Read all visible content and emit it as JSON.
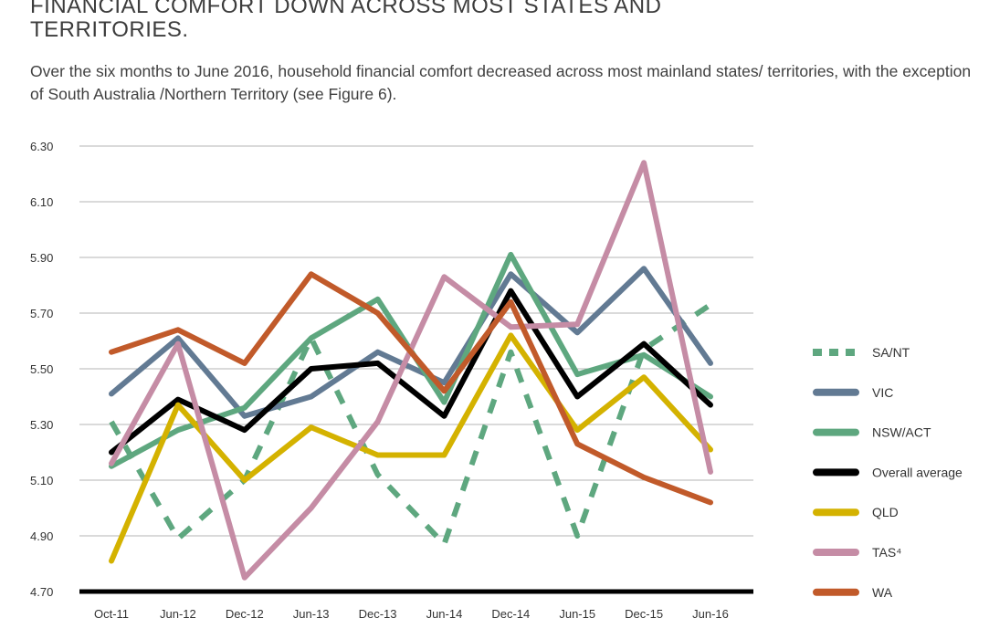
{
  "header": {
    "title": "FINANCIAL COMFORT DOWN ACROSS MOST STATES AND TERRITORIES.",
    "subtitle": "Over the six months to June 2016, household financial comfort decreased across most mainland states/ territories, with the exception of South Australia /Northern Territory (see Figure 6)."
  },
  "chart_data": {
    "type": "line",
    "categories": [
      "Oct-11",
      "Jun-12",
      "Dec-12",
      "Jun-13",
      "Dec-13",
      "Jun-14",
      "Dec-14",
      "Jun-15",
      "Dec-15",
      "Jun-16"
    ],
    "ylim": [
      4.7,
      6.3
    ],
    "yticks": [
      "6.30",
      "6.10",
      "5.90",
      "5.70",
      "5.50",
      "5.30",
      "5.10",
      "4.90",
      "4.70"
    ],
    "ytick_values": [
      6.3,
      6.1,
      5.9,
      5.7,
      5.5,
      5.3,
      5.1,
      4.9,
      4.7
    ],
    "grid": true,
    "legend_position": "right",
    "series": [
      {
        "name": "SA/NT",
        "color": "#5ea77f",
        "dashed": true,
        "values": [
          5.31,
          4.89,
          5.1,
          5.61,
          5.12,
          4.87,
          5.56,
          4.9,
          5.57,
          5.73
        ]
      },
      {
        "name": "VIC",
        "color": "#627a93",
        "dashed": false,
        "values": [
          5.41,
          5.61,
          5.33,
          5.4,
          5.56,
          5.45,
          5.84,
          5.63,
          5.86,
          5.52
        ]
      },
      {
        "name": "NSW/ACT",
        "color": "#5ea77f",
        "dashed": false,
        "values": [
          5.15,
          5.28,
          5.36,
          5.61,
          5.75,
          5.38,
          5.91,
          5.48,
          5.55,
          5.4
        ]
      },
      {
        "name": "Overall average",
        "color": "#000000",
        "dashed": false,
        "values": [
          5.2,
          5.39,
          5.28,
          5.5,
          5.52,
          5.33,
          5.78,
          5.4,
          5.59,
          5.37
        ]
      },
      {
        "name": "QLD",
        "color": "#d4b200",
        "dashed": false,
        "values": [
          4.81,
          5.37,
          5.1,
          5.29,
          5.19,
          5.19,
          5.62,
          5.28,
          5.47,
          5.21
        ]
      },
      {
        "name": "TAS⁴",
        "color": "#c58ca5",
        "dashed": false,
        "values": [
          5.16,
          5.59,
          4.75,
          5.0,
          5.31,
          5.83,
          5.65,
          5.66,
          6.24,
          5.13
        ]
      },
      {
        "name": "WA",
        "color": "#c15a2a",
        "dashed": false,
        "values": [
          5.56,
          5.64,
          5.52,
          5.84,
          5.7,
          5.42,
          5.74,
          5.23,
          5.11,
          5.02
        ]
      }
    ]
  }
}
